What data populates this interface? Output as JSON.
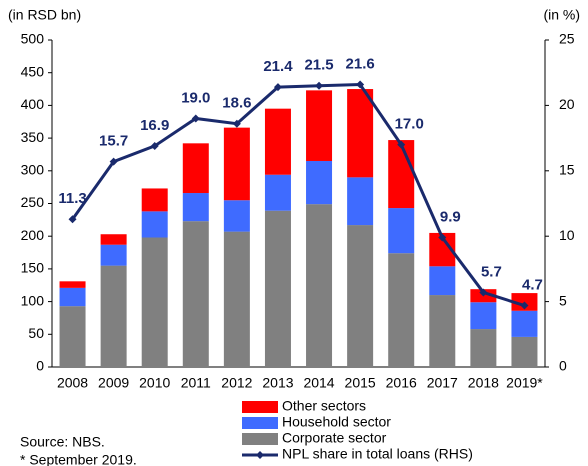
{
  "chart_data": {
    "type": "bar_line",
    "y_label": "(in RSD bn)",
    "y2_label": "(in %)",
    "source": "Source: NBS.",
    "note": "* September 2019.",
    "categories": [
      "2008",
      "2009",
      "2010",
      "2011",
      "2012",
      "2013",
      "2014",
      "2015",
      "2016",
      "2017",
      "2018",
      "2019*"
    ],
    "series": [
      {
        "name": "Other sectors",
        "color": "#ff0000",
        "values": [
          10,
          16,
          35,
          76,
          111,
          101,
          108,
          135,
          104,
          51,
          20,
          27
        ]
      },
      {
        "name": "Household sector",
        "color": "#3f6bff",
        "values": [
          28,
          32,
          40,
          43,
          48,
          55,
          66,
          73,
          69,
          44,
          41,
          40
        ]
      },
      {
        "name": "Corporate sector",
        "color": "#808080",
        "values": [
          93,
          155,
          198,
          223,
          207,
          239,
          249,
          217,
          174,
          110,
          58,
          46
        ]
      },
      {
        "name": "NPL share in total loans (RHS)",
        "color": "#1a2a6c",
        "axis": "y2",
        "values": [
          11.3,
          15.7,
          16.9,
          19.0,
          18.6,
          21.4,
          21.5,
          21.6,
          17.0,
          9.9,
          5.7,
          4.7
        ],
        "value_labels": [
          "11.3",
          "15.7",
          "16.9",
          "19.0",
          "18.6",
          "21.4",
          "21.5",
          "21.6",
          "17.0",
          "9.9",
          "5.7",
          "4.7"
        ]
      }
    ],
    "ylim": [
      0,
      500
    ],
    "yticks": [
      0,
      50,
      100,
      150,
      200,
      250,
      300,
      350,
      400,
      450,
      500
    ],
    "y2lim": [
      0,
      25
    ],
    "y2ticks": [
      0,
      5,
      10,
      15,
      20,
      25
    ],
    "grid": false
  }
}
